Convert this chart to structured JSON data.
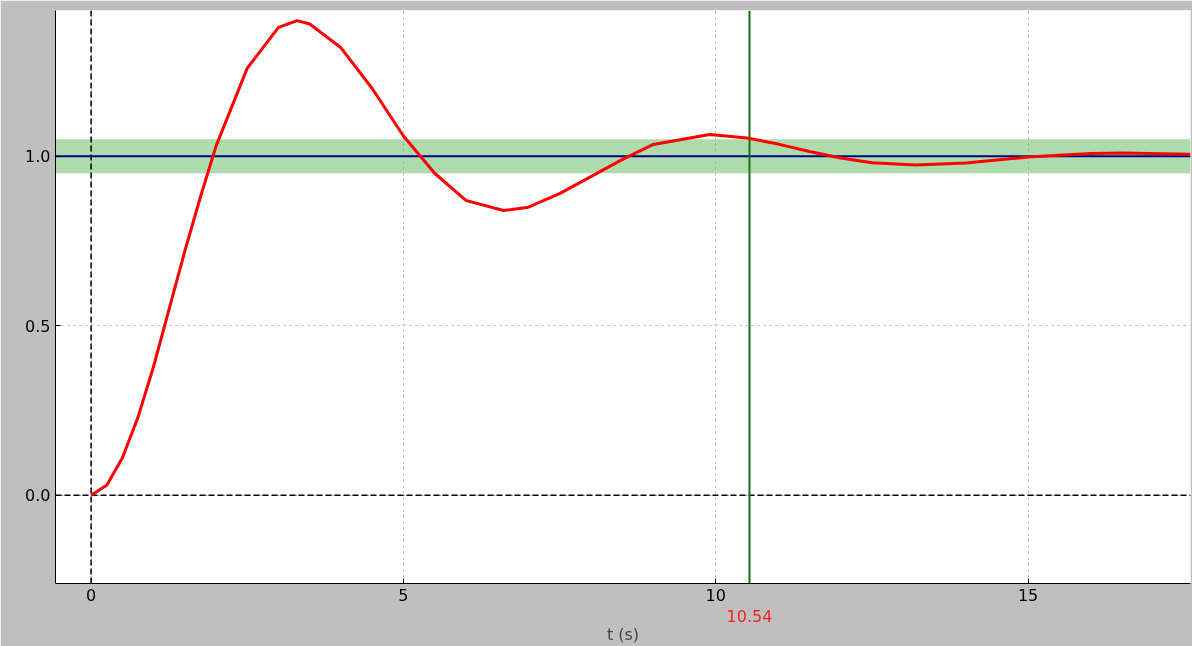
{
  "chart_data": {
    "type": "line",
    "xlabel": "t (s)",
    "xlim": [
      -0.57,
      17.6
    ],
    "ylim": [
      -0.26,
      1.43
    ],
    "xticks": [
      0,
      5,
      10,
      15
    ],
    "yticks": [
      {
        "value": 0,
        "label": "0.0"
      },
      {
        "value": 0.5,
        "label": "0.5"
      },
      {
        "value": 1,
        "label": "1.0"
      }
    ],
    "grid": true,
    "marker": "none",
    "line_style": "solid",
    "series": [
      {
        "color": "#ff0000",
        "x": [
          0,
          0.25,
          0.5,
          0.75,
          1,
          1.25,
          1.5,
          1.75,
          2,
          2.5,
          3,
          3.3,
          3.5,
          4,
          4.5,
          5,
          5.5,
          6,
          6.6,
          7,
          7.5,
          8,
          8.5,
          9,
          9.9,
          10.5,
          11,
          11.5,
          12,
          12.5,
          13.2,
          14,
          15,
          16,
          16.5,
          17.6
        ],
        "values": [
          0,
          0.03,
          0.11,
          0.23,
          0.38,
          0.55,
          0.72,
          0.88,
          1.03,
          1.26,
          1.38,
          1.4,
          1.39,
          1.32,
          1.2,
          1.06,
          0.95,
          0.87,
          0.84,
          0.85,
          0.89,
          0.94,
          0.99,
          1.035,
          1.064,
          1.054,
          1.036,
          1.014,
          0.995,
          0.981,
          0.974,
          0.98,
          0.998,
          1.008,
          1.01,
          1.006
        ]
      }
    ],
    "ref_lines": [
      {
        "axis": "y",
        "value": 0,
        "color": "#000000",
        "line_style": "dashed"
      },
      {
        "axis": "x",
        "value": 0,
        "color": "#000000",
        "line_style": "dashed"
      },
      {
        "axis": "y",
        "value": 1,
        "color": "#00008b",
        "line_style": "solid"
      },
      {
        "axis": "x",
        "value": 10.54,
        "label": "10.54",
        "color": "#1a6e1a",
        "line_style": "solid"
      }
    ],
    "bands": [
      {
        "axis": "y",
        "from": 0.95,
        "to": 1.05,
        "color": "#5cb85c"
      }
    ]
  }
}
